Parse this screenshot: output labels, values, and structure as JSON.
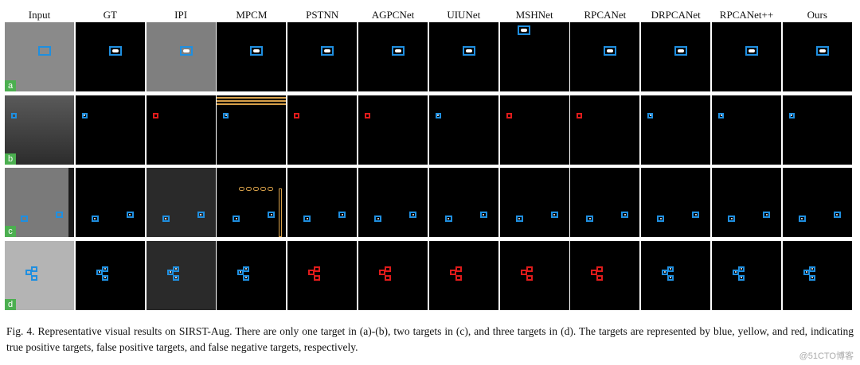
{
  "figure": {
    "columns": [
      "Input",
      "GT",
      "IPI",
      "MPCM",
      "PSTNN",
      "AGPCNet",
      "UIUNet",
      "MSHNet",
      "RPCANet",
      "DRPCANet",
      "RPCANet++",
      "Ours"
    ],
    "row_labels": [
      "a",
      "b",
      "c",
      "d"
    ]
  },
  "caption": {
    "text": "Fig. 4.  Representative visual results on SIRST-Aug. There are only one target in (a)-(b), two targets in (c), and three targets in (d). The targets are represented by blue, yellow, and red, indicating true positive targets, false positive targets, and false negative targets, respectively."
  },
  "watermark": "@51CTO博客",
  "legend_colors": {
    "true_positive": "#1f8fe0",
    "false_positive": "#d8a14a",
    "false_negative": "#e01b1b"
  }
}
